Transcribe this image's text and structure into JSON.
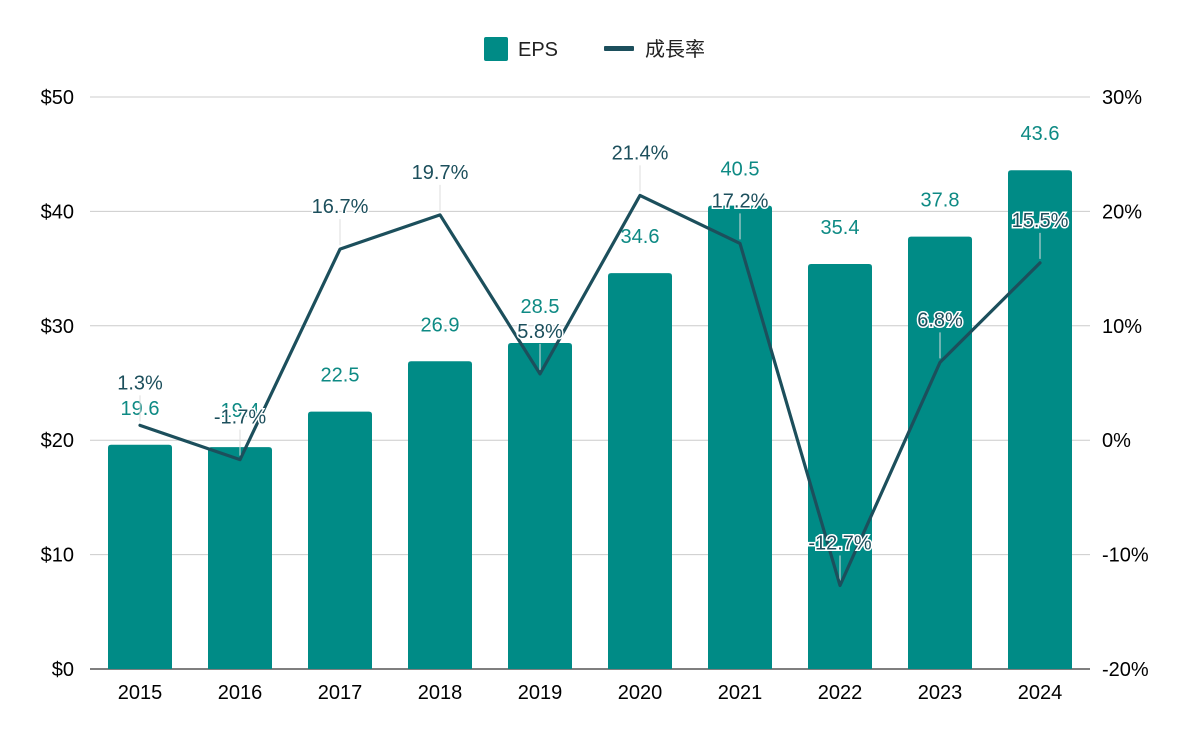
{
  "colors": {
    "bar": "#008b86",
    "line": "#1c4f5c",
    "grid": "#cccccc",
    "axis": "#333333",
    "bar_label": "#0e8a84",
    "line_label": "#1c4f5c"
  },
  "legend": {
    "position": "top-center",
    "items": [
      {
        "label": "EPS",
        "marker": "square",
        "series": "EPS"
      },
      {
        "label": "成長率",
        "marker": "line",
        "series": "成長率"
      }
    ]
  },
  "chart_data": {
    "type": "bar",
    "grid": true,
    "categories": [
      "2015",
      "2016",
      "2017",
      "2018",
      "2019",
      "2020",
      "2021",
      "2022",
      "2023",
      "2024"
    ],
    "series": [
      {
        "name": "EPS",
        "type": "bar",
        "axis": "left",
        "values": [
          19.6,
          19.4,
          22.5,
          26.9,
          28.5,
          34.6,
          40.5,
          35.4,
          37.8,
          43.6
        ],
        "labels": [
          "19.6",
          "19.4",
          "22.5",
          "26.9",
          "28.5",
          "34.6",
          "40.5",
          "35.4",
          "37.8",
          "43.6"
        ]
      },
      {
        "name": "成長率",
        "type": "line",
        "axis": "right",
        "values": [
          1.3,
          -1.7,
          16.7,
          19.7,
          5.8,
          21.4,
          17.2,
          -12.7,
          6.8,
          15.5
        ],
        "labels": [
          "1.3%",
          "-1.7%",
          "16.7%",
          "19.7%",
          "5.8%",
          "21.4%",
          "17.2%",
          "-12.7%",
          "6.8%",
          "15.5%"
        ]
      }
    ],
    "y_left": {
      "range": [
        0,
        50
      ],
      "ticks": [
        0,
        10,
        20,
        30,
        40,
        50
      ],
      "tick_labels": [
        "$0",
        "$10",
        "$20",
        "$30",
        "$40",
        "$50"
      ]
    },
    "y_right": {
      "range": [
        -20,
        30
      ],
      "ticks": [
        -20,
        -10,
        0,
        10,
        20,
        30
      ],
      "tick_labels": [
        "-20%",
        "-10%",
        "0%",
        "10%",
        "20%",
        "30%"
      ]
    }
  }
}
